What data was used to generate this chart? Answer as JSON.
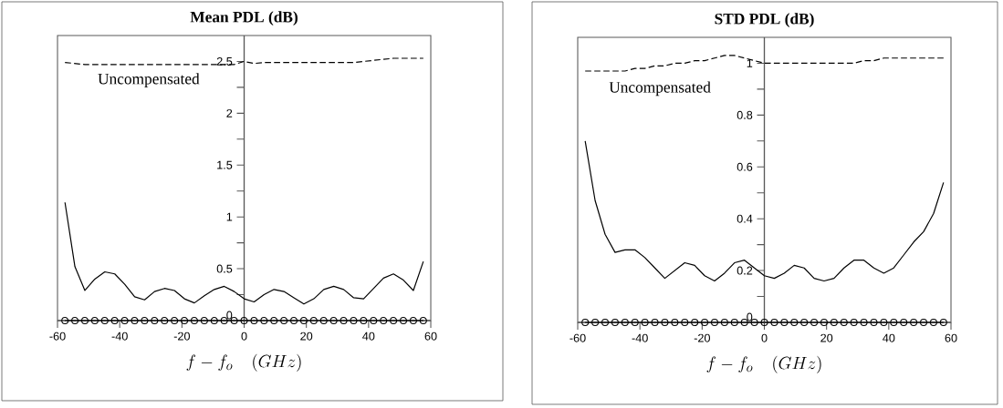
{
  "chart_data": [
    {
      "type": "line",
      "title": "Mean PDL (dB)",
      "xlabel": "f - f_o \\quad (GHz)",
      "xlim": [
        -60,
        60
      ],
      "xticks": [
        -60,
        -40,
        -20,
        0,
        20,
        40,
        60
      ],
      "ylim": [
        0,
        2.75
      ],
      "yticks": [
        0,
        {
          "value": 0.25,
          "label": null
        },
        0.5,
        {
          "value": 0.75,
          "label": null
        },
        1,
        {
          "value": 1.25,
          "label": null
        },
        1.5,
        {
          "value": 1.75,
          "label": null
        },
        2,
        {
          "value": 2.25,
          "label": null
        },
        2.5
      ],
      "grid": false,
      "x": [
        -57.6,
        -54.4,
        -51.2,
        -48,
        -44.8,
        -41.6,
        -38.4,
        -35.2,
        -32,
        -28.8,
        -25.6,
        -22.4,
        -19.2,
        -16,
        -12.8,
        -9.6,
        -6.4,
        -3.2,
        0,
        3.2,
        6.4,
        9.6,
        12.8,
        16,
        19.2,
        22.4,
        25.6,
        28.8,
        32,
        35.2,
        38.4,
        41.6,
        44.8,
        48,
        51.2,
        54.4,
        57.6
      ],
      "series": [
        {
          "name": "Uncompensated",
          "color": "#000000",
          "line_style": "dashed",
          "marker": "none",
          "values": [
            2.49,
            2.48,
            2.47,
            2.47,
            2.47,
            2.47,
            2.47,
            2.47,
            2.47,
            2.47,
            2.47,
            2.47,
            2.47,
            2.47,
            2.47,
            2.47,
            2.47,
            2.47,
            2.5,
            2.48,
            2.49,
            2.49,
            2.49,
            2.49,
            2.49,
            2.49,
            2.49,
            2.49,
            2.49,
            2.49,
            2.5,
            2.51,
            2.52,
            2.53,
            2.53,
            2.53,
            2.53
          ]
        },
        {
          "color": "#000000",
          "line_style": "solid",
          "marker": "none",
          "values": [
            1.14,
            0.52,
            0.29,
            0.4,
            0.47,
            0.45,
            0.35,
            0.23,
            0.2,
            0.28,
            0.31,
            0.29,
            0.21,
            0.17,
            0.24,
            0.3,
            0.33,
            0.28,
            0.21,
            0.18,
            0.25,
            0.3,
            0.28,
            0.22,
            0.16,
            0.21,
            0.3,
            0.33,
            0.3,
            0.22,
            0.21,
            0.31,
            0.41,
            0.45,
            0.39,
            0.29,
            0.57
          ]
        },
        {
          "color": "#000000",
          "line_style": "solid",
          "marker": "circle",
          "values": [
            0,
            0,
            0,
            0,
            0,
            0,
            0,
            0,
            0,
            0,
            0,
            0,
            0,
            0,
            0,
            0,
            0,
            0,
            0,
            0,
            0,
            0,
            0,
            0,
            0,
            0,
            0,
            0,
            0,
            0,
            0,
            0,
            0,
            0,
            0,
            0,
            0
          ]
        }
      ]
    },
    {
      "type": "line",
      "title": "STD PDL (dB)",
      "xlabel": "f - f_o \\quad (GHz)",
      "xlim": [
        -60,
        60
      ],
      "xticks": [
        -60,
        -40,
        -20,
        0,
        20,
        40,
        60
      ],
      "ylim": [
        0,
        1.1
      ],
      "yticks": [
        0,
        {
          "value": 0.1,
          "label": null
        },
        0.2,
        {
          "value": 0.3,
          "label": null
        },
        0.4,
        {
          "value": 0.5,
          "label": null
        },
        0.6,
        {
          "value": 0.7,
          "label": null
        },
        0.8,
        {
          "value": 0.9,
          "label": null
        },
        1
      ],
      "grid": false,
      "x": [
        -57.6,
        -54.4,
        -51.2,
        -48,
        -44.8,
        -41.6,
        -38.4,
        -35.2,
        -32,
        -28.8,
        -25.6,
        -22.4,
        -19.2,
        -16,
        -12.8,
        -9.6,
        -6.4,
        -3.2,
        0,
        3.2,
        6.4,
        9.6,
        12.8,
        16,
        19.2,
        22.4,
        25.6,
        28.8,
        32,
        35.2,
        38.4,
        41.6,
        44.8,
        48,
        51.2,
        54.4,
        57.6
      ],
      "series": [
        {
          "name": "Uncompensated",
          "color": "#000000",
          "line_style": "dashed",
          "marker": "none",
          "values": [
            0.97,
            0.97,
            0.97,
            0.97,
            0.97,
            0.98,
            0.98,
            0.99,
            0.99,
            1.0,
            1.0,
            1.01,
            1.01,
            1.02,
            1.03,
            1.03,
            1.02,
            1.01,
            1.0,
            1.0,
            1.0,
            1.0,
            1.0,
            1.0,
            1.0,
            1.0,
            1.0,
            1.0,
            1.01,
            1.01,
            1.02,
            1.02,
            1.02,
            1.02,
            1.02,
            1.02,
            1.02
          ]
        },
        {
          "color": "#000000",
          "line_style": "solid",
          "marker": "none",
          "values": [
            0.7,
            0.47,
            0.34,
            0.27,
            0.28,
            0.28,
            0.25,
            0.21,
            0.17,
            0.2,
            0.23,
            0.22,
            0.18,
            0.16,
            0.19,
            0.23,
            0.24,
            0.21,
            0.18,
            0.17,
            0.19,
            0.22,
            0.21,
            0.17,
            0.16,
            0.17,
            0.21,
            0.24,
            0.24,
            0.21,
            0.19,
            0.21,
            0.26,
            0.31,
            0.35,
            0.42,
            0.54
          ]
        },
        {
          "color": "#000000",
          "line_style": "solid",
          "marker": "circle",
          "values": [
            0,
            0,
            0,
            0,
            0,
            0,
            0,
            0,
            0,
            0,
            0,
            0,
            0,
            0,
            0,
            0,
            0,
            0,
            0,
            0,
            0,
            0,
            0,
            0,
            0,
            0,
            0,
            0,
            0,
            0,
            0,
            0,
            0,
            0,
            0,
            0,
            0
          ]
        }
      ]
    }
  ]
}
